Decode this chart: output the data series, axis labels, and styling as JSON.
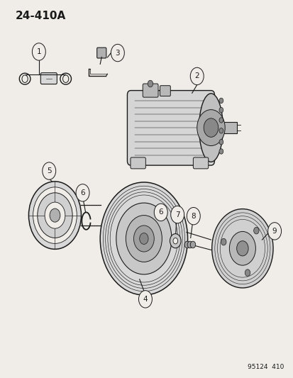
{
  "title": "24-410A",
  "footer": "95124  410",
  "bg_color": "#f0ede8",
  "line_color": "#1a1a1a",
  "title_fontsize": 11,
  "footer_fontsize": 6.5,
  "label_fontsize": 7.5
}
